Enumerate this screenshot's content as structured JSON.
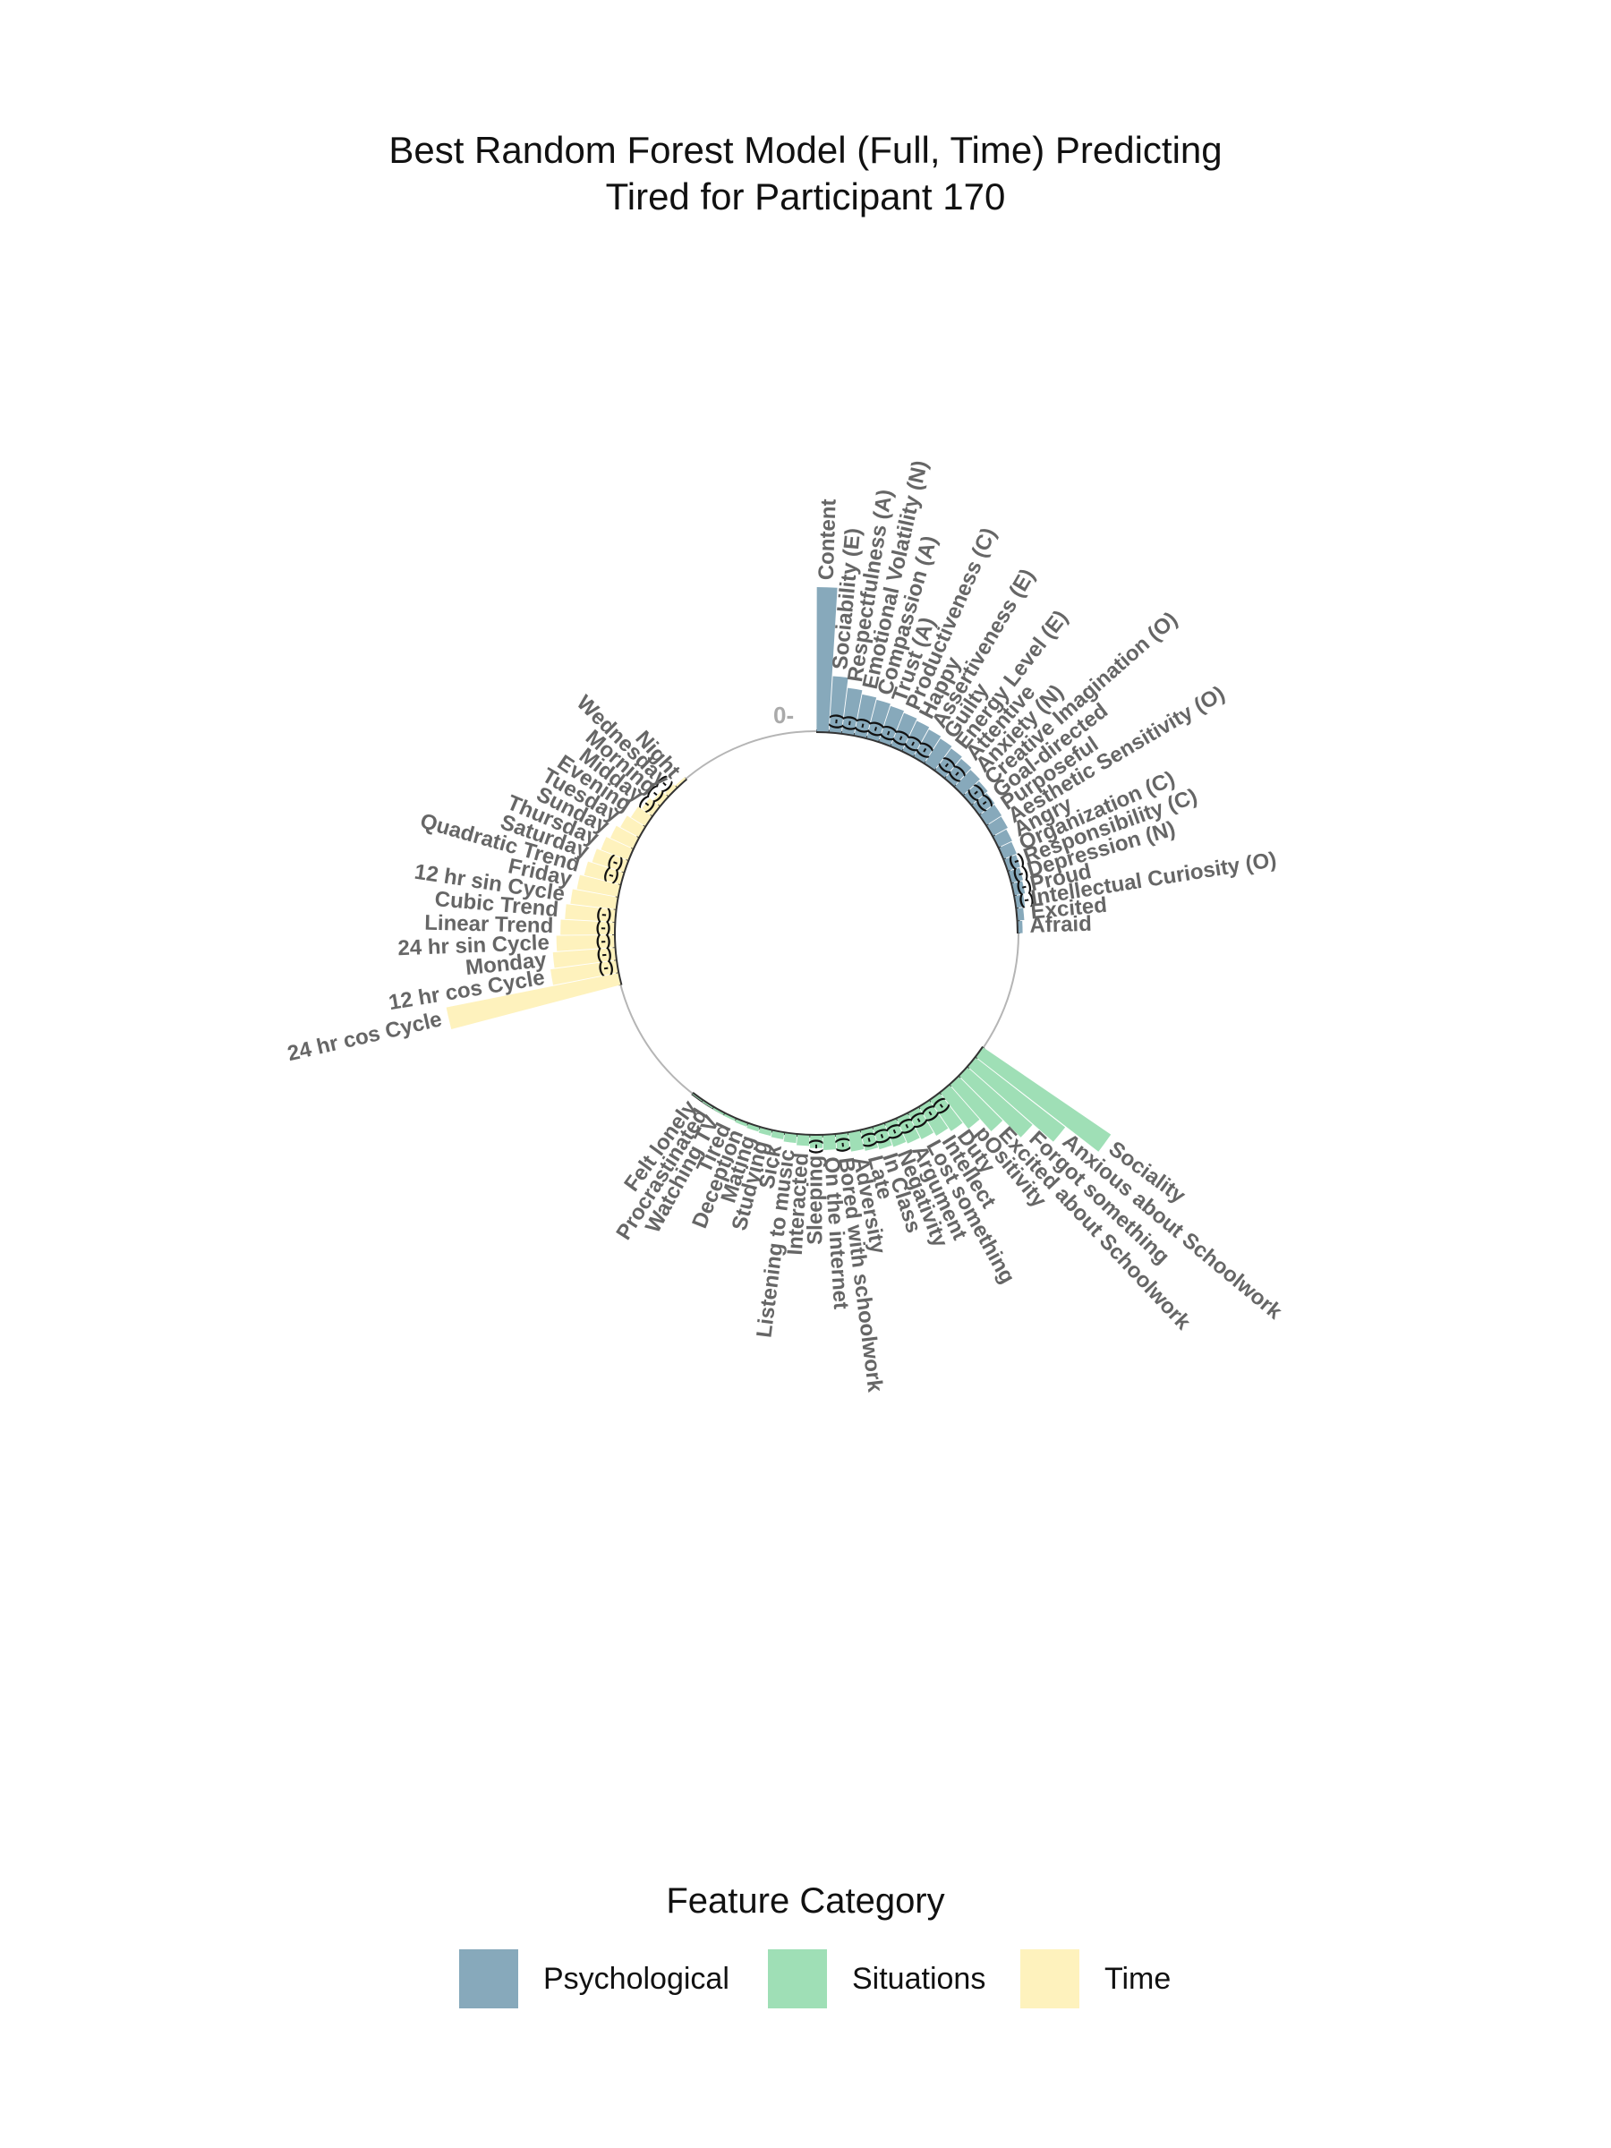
{
  "title_line1": "Best Random Forest Model (Full, Time) Predicting",
  "title_line2": "Tired for Participant 170",
  "zero_label": "0-",
  "negative_marker": "(-)",
  "legend": {
    "title": "Feature Category",
    "items": [
      {
        "label": "Psychological",
        "color": "#87a9bb"
      },
      {
        "label": "Situations",
        "color": "#9fdfb6"
      },
      {
        "label": "Time",
        "color": "#fef2bd"
      }
    ]
  },
  "chart_data": {
    "type": "bar",
    "coordinate_system": "polar",
    "title": "Best Random Forest Model (Full, Time) Predicting Tired for Participant 170",
    "value_meaning": "relative variable importance (radial bar length, estimated)",
    "radial_zero_tick": "0",
    "legend_title": "Feature Category",
    "legend_position": "bottom",
    "grid": false,
    "categories_order": "clockwise from top, grouped by category",
    "series": [
      {
        "name": "Psychological",
        "color": "#87a9bb",
        "points": [
          {
            "label": "Content",
            "value": 0.7,
            "negative": false
          },
          {
            "label": "Sociability (E)",
            "value": 0.27,
            "negative": true
          },
          {
            "label": "Respectfulness (A)",
            "value": 0.22,
            "negative": true
          },
          {
            "label": "Emotional Volatility (N)",
            "value": 0.2,
            "negative": true
          },
          {
            "label": "Compassion (A)",
            "value": 0.19,
            "negative": true
          },
          {
            "label": "Trust (A)",
            "value": 0.18,
            "negative": true
          },
          {
            "label": "Productiveness (C)",
            "value": 0.17,
            "negative": true
          },
          {
            "label": "Happy",
            "value": 0.16,
            "negative": true
          },
          {
            "label": "Assertiveness (E)",
            "value": 0.15,
            "negative": true
          },
          {
            "label": "Guilty",
            "value": 0.14,
            "negative": false
          },
          {
            "label": "Energy Level (E)",
            "value": 0.13,
            "negative": true
          },
          {
            "label": "Attentive",
            "value": 0.12,
            "negative": true
          },
          {
            "label": "Anxiety (N)",
            "value": 0.11,
            "negative": false
          },
          {
            "label": "Creative Imagination (O)",
            "value": 0.1,
            "negative": true
          },
          {
            "label": "Goal-directed",
            "value": 0.09,
            "negative": true
          },
          {
            "label": "Purposeful",
            "value": 0.085,
            "negative": false
          },
          {
            "label": "Aesthetic Sensitivity (O)",
            "value": 0.08,
            "negative": false
          },
          {
            "label": "Angry",
            "value": 0.07,
            "negative": false
          },
          {
            "label": "Organization (C)",
            "value": 0.065,
            "negative": false
          },
          {
            "label": "Responsibility (C)",
            "value": 0.06,
            "negative": true
          },
          {
            "label": "Depression (N)",
            "value": 0.055,
            "negative": true
          },
          {
            "label": "Proud",
            "value": 0.05,
            "negative": true
          },
          {
            "label": "Intellectual Curiosity (O)",
            "value": 0.04,
            "negative": true
          },
          {
            "label": "Excited",
            "value": 0.03,
            "negative": false
          },
          {
            "label": "Afraid",
            "value": 0.02,
            "negative": false
          }
        ]
      },
      {
        "name": "Situations",
        "color": "#9fdfb6",
        "points": [
          {
            "label": "Sociality",
            "value": 0.75,
            "negative": false
          },
          {
            "label": "Anxious about Schoolwork",
            "value": 0.55,
            "negative": false
          },
          {
            "label": "Forgot something",
            "value": 0.42,
            "negative": false
          },
          {
            "label": "Excited about Schoolwork",
            "value": 0.3,
            "negative": false
          },
          {
            "label": "pOsitivity",
            "value": 0.22,
            "negative": false
          },
          {
            "label": "Duty",
            "value": 0.18,
            "negative": true
          },
          {
            "label": "Intellect",
            "value": 0.16,
            "negative": true
          },
          {
            "label": "Lost something",
            "value": 0.14,
            "negative": true
          },
          {
            "label": "Argument",
            "value": 0.13,
            "negative": true
          },
          {
            "label": "Negativity",
            "value": 0.12,
            "negative": true
          },
          {
            "label": "In Class",
            "value": 0.11,
            "negative": true
          },
          {
            "label": "Late",
            "value": 0.1,
            "negative": true
          },
          {
            "label": "Adversity",
            "value": 0.09,
            "negative": false
          },
          {
            "label": "Bored with schoolwork",
            "value": 0.08,
            "negative": true
          },
          {
            "label": "On the internet",
            "value": 0.07,
            "negative": false
          },
          {
            "label": "Sleeping",
            "value": 0.06,
            "negative": true
          },
          {
            "label": "Interacted",
            "value": 0.05,
            "negative": false
          },
          {
            "label": "Listening to music",
            "value": 0.04,
            "negative": false
          },
          {
            "label": "Sick",
            "value": 0.03,
            "negative": false
          },
          {
            "label": "Studying",
            "value": 0.025,
            "negative": false
          },
          {
            "label": "Mating",
            "value": 0.02,
            "negative": false
          },
          {
            "label": "Deception",
            "value": 0.015,
            "negative": false
          },
          {
            "label": "Tired",
            "value": 0.01,
            "negative": false
          },
          {
            "label": "Watching TV",
            "value": 0.008,
            "negative": false
          },
          {
            "label": "Procrastinated",
            "value": 0.006,
            "negative": false
          },
          {
            "label": "Felt lonely",
            "value": 0.004,
            "negative": false
          }
        ]
      },
      {
        "name": "Time",
        "color": "#fef2bd",
        "points": [
          {
            "label": "24 hr cos Cycle",
            "value": 0.85,
            "negative": false
          },
          {
            "label": "12 hr cos Cycle",
            "value": 0.32,
            "negative": true
          },
          {
            "label": "Monday",
            "value": 0.3,
            "negative": true
          },
          {
            "label": "24 hr sin Cycle",
            "value": 0.28,
            "negative": true
          },
          {
            "label": "Linear Trend",
            "value": 0.26,
            "negative": true
          },
          {
            "label": "Cubic Trend",
            "value": 0.24,
            "negative": true
          },
          {
            "label": "12 hr sin Cycle",
            "value": 0.22,
            "negative": false
          },
          {
            "label": "Friday",
            "value": 0.2,
            "negative": false
          },
          {
            "label": "Quadratic Trend",
            "value": 0.18,
            "negative": true
          },
          {
            "label": "Saturday",
            "value": 0.16,
            "negative": true
          },
          {
            "label": "Thursday",
            "value": 0.14,
            "negative": false
          },
          {
            "label": "Sunday",
            "value": 0.12,
            "negative": false
          },
          {
            "label": "Tuesday",
            "value": 0.1,
            "negative": false
          },
          {
            "label": "Evening",
            "value": 0.08,
            "negative": false
          },
          {
            "label": "Midday",
            "value": 0.06,
            "negative": true
          },
          {
            "label": "Morning",
            "value": 0.04,
            "negative": true
          },
          {
            "label": "Wednesday",
            "value": 0.02,
            "negative": true
          },
          {
            "label": "Night",
            "value": 0.01,
            "negative": false
          }
        ]
      }
    ]
  }
}
